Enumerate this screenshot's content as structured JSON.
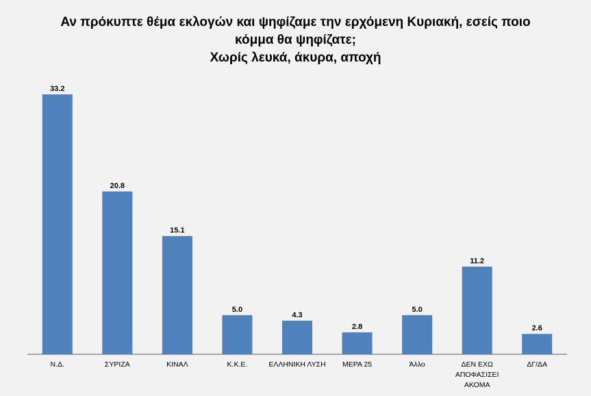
{
  "chart_data": {
    "type": "bar",
    "title_lines": [
      "Αν πρόκυπτε θέμα εκλογών και ψηφίζαμε την ερχόμενη Κυριακή, εσείς ποιο",
      "κόμμα θα ψηφίζατε;",
      "Χωρίς λευκά, άκυρα, αποχή"
    ],
    "categories": [
      [
        "Ν.Δ."
      ],
      [
        "ΣΥΡΙΖΑ"
      ],
      [
        "ΚΙΝΑΛ"
      ],
      [
        "Κ.Κ.Ε."
      ],
      [
        "ΕΛΛΗΝΙΚΗ ΛΥΣΗ"
      ],
      [
        "ΜΕΡΑ 25"
      ],
      [
        "Άλλο"
      ],
      [
        "ΔΕΝ ΕΧΩ",
        "ΑΠΟΦΑΣΙΣΕΙ",
        "ΑΚΟΜΑ"
      ],
      [
        "ΔΓ/ΔΑ"
      ]
    ],
    "values": [
      33.2,
      20.8,
      15.1,
      5.0,
      4.3,
      2.8,
      5.0,
      11.2,
      2.6
    ],
    "value_labels": [
      "33.2",
      "20.8",
      "15.1",
      "5.0",
      "4.3",
      "2.8",
      "5.0",
      "11.2",
      "2.6"
    ],
    "ylim": [
      0,
      33.2
    ],
    "grid": false,
    "colors": {
      "bar": "#4f81bd",
      "axis": "#8c8c8c",
      "background": "#f2f2f2"
    }
  }
}
